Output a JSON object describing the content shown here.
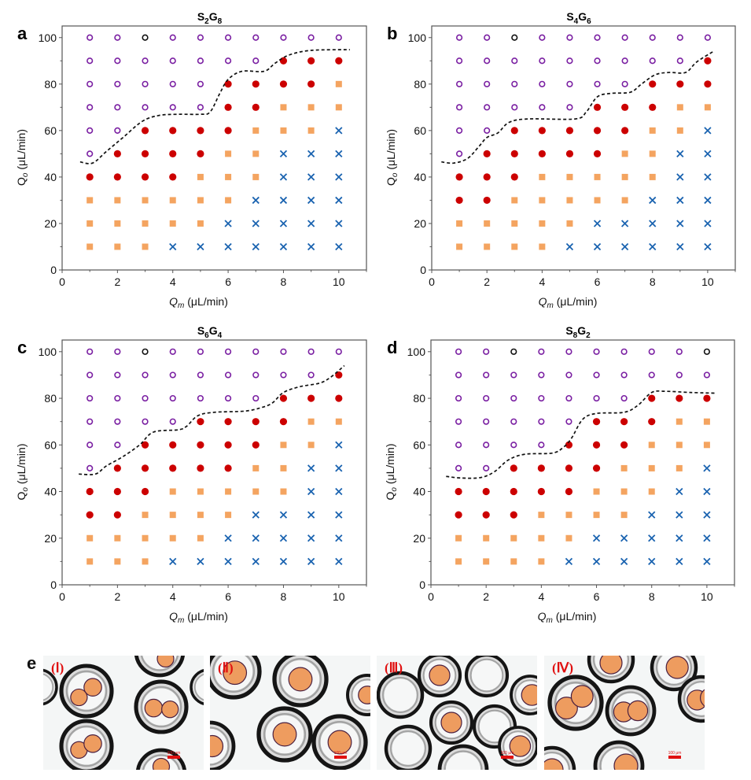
{
  "figure": {
    "panel_e_letter": "e",
    "photos": [
      {
        "label": "(Ⅰ)",
        "scalebar": "100 μm",
        "cores_per_shell": 2
      },
      {
        "label": "(Ⅱ)",
        "scalebar": "100 μm",
        "cores_per_shell": 1
      },
      {
        "label": "(Ⅲ)",
        "scalebar": "100 μm",
        "cores_per_shell": "0-1"
      },
      {
        "label": "(Ⅳ)",
        "scalebar": "100 μm",
        "cores_per_shell": "1-2"
      }
    ]
  },
  "colors": {
    "hollow_purple": "#7a1fa2",
    "hollow_black": "#111111",
    "solid_red": "#cc0000",
    "square_orange": "#f4a460",
    "cross_blue": "#1a63b0",
    "boundary": "#111111"
  },
  "legend_codes": {
    "o": "purple open circle",
    "k": "black open circle",
    "r": "red filled circle",
    "s": "orange filled square",
    "x": "blue cross"
  },
  "chart_data": [
    {
      "panel": "a",
      "type": "scatter",
      "title_main": "S",
      "title_sub1": "2",
      "title_mid": "G",
      "title_sub2": "8",
      "xlabel_var": "Q",
      "xlabel_sub": "m",
      "xlabel_unit": " (μL/min)",
      "ylabel_var": "Q",
      "ylabel_sub": "o",
      "ylabel_unit": " (μL/min)",
      "xlim": [
        0,
        11
      ],
      "ylim": [
        0,
        105
      ],
      "xticks": [
        "0",
        "2",
        "4",
        "6",
        "8",
        "10"
      ],
      "yticks": [
        "0",
        "20",
        "40",
        "60",
        "80",
        "100"
      ],
      "x": [
        1,
        2,
        3,
        4,
        5,
        6,
        7,
        8,
        9,
        10
      ],
      "y": [
        100,
        90,
        80,
        70,
        60,
        50,
        40,
        30,
        20,
        10
      ],
      "grid": [
        "ookooooooo",
        "ooooooorrr",
        "ooooorrrrs",
        "ooooorrsss",
        "oorrrrsssx",
        "orrrrssxxx",
        "rrrrsssxxx",
        "ssssssxxxx",
        "sssssxxxxx",
        "sssxxxxxxx"
      ],
      "boundary": [
        [
          0.65,
          46.5
        ],
        [
          1.1,
          46
        ],
        [
          1.6,
          51
        ],
        [
          2.2,
          57
        ],
        [
          2.9,
          64
        ],
        [
          3.5,
          66.5
        ],
        [
          4.2,
          67
        ],
        [
          5,
          67
        ],
        [
          5.35,
          68
        ],
        [
          5.7,
          76
        ],
        [
          6,
          82
        ],
        [
          6.5,
          85.5
        ],
        [
          7.3,
          85.5
        ],
        [
          7.7,
          89
        ],
        [
          8.2,
          92.5
        ],
        [
          9,
          94.5
        ],
        [
          10.4,
          94.8
        ]
      ]
    },
    {
      "panel": "b",
      "type": "scatter",
      "title_main": "S",
      "title_sub1": "4",
      "title_mid": "G",
      "title_sub2": "6",
      "xlabel_var": "Q",
      "xlabel_sub": "m",
      "xlabel_unit": " (μL/min)",
      "ylabel_var": "Q",
      "ylabel_sub": "o",
      "ylabel_unit": " (μL/min)",
      "xlim": [
        0,
        11
      ],
      "ylim": [
        0,
        105
      ],
      "xticks": [
        "0",
        "2",
        "4",
        "6",
        "8",
        "10"
      ],
      "yticks": [
        "0",
        "20",
        "40",
        "60",
        "80",
        "100"
      ],
      "x": [
        1,
        2,
        3,
        4,
        5,
        6,
        7,
        8,
        9,
        10
      ],
      "y": [
        100,
        90,
        80,
        70,
        60,
        50,
        40,
        30,
        20,
        10
      ],
      "grid": [
        "ookooooooo",
        "ooooooooor",
        "ooooooorrr",
        "ooooorrrss",
        "oorrrrrssx",
        "orrrrrssxx",
        "rrrsssssxx",
        "rrsssssxxx",
        "sssssxxxxx",
        "ssssxxxxxx"
      ],
      "boundary": [
        [
          0.35,
          46.5
        ],
        [
          0.8,
          46
        ],
        [
          1.3,
          48
        ],
        [
          1.7,
          53
        ],
        [
          2,
          57
        ],
        [
          2.4,
          59
        ],
        [
          2.8,
          63.5
        ],
        [
          3.5,
          65
        ],
        [
          5.2,
          65
        ],
        [
          5.6,
          68
        ],
        [
          6,
          74.5
        ],
        [
          6.5,
          76
        ],
        [
          7.2,
          76.5
        ],
        [
          7.6,
          80
        ],
        [
          8.1,
          84
        ],
        [
          8.6,
          85
        ],
        [
          9.2,
          85
        ],
        [
          9.6,
          89.5
        ],
        [
          10.2,
          94
        ]
      ]
    },
    {
      "panel": "c",
      "type": "scatter",
      "title_main": "S",
      "title_sub1": "6",
      "title_mid": "G",
      "title_sub2": "4",
      "xlabel_var": "Q",
      "xlabel_sub": "m",
      "xlabel_unit": " (μL/min)",
      "ylabel_var": "Q",
      "ylabel_sub": "o",
      "ylabel_unit": " (μL/min)",
      "xlim": [
        0,
        11
      ],
      "ylim": [
        0,
        105
      ],
      "xticks": [
        "0",
        "2",
        "4",
        "6",
        "8",
        "10"
      ],
      "yticks": [
        "0",
        "20",
        "40",
        "60",
        "80",
        "100"
      ],
      "x": [
        1,
        2,
        3,
        4,
        5,
        6,
        7,
        8,
        9,
        10
      ],
      "y": [
        100,
        90,
        80,
        70,
        60,
        50,
        40,
        30,
        20,
        10
      ],
      "grid": [
        "ookooooooo",
        "ooooooooor",
        "ooooooorrr",
        "oooorrrrss",
        "oorrrrrssx",
        "orrrrrssxx",
        "rrrsssssxx",
        "rrssssxxxx",
        "sssssxxxxx",
        "sssxxxxxxx"
      ],
      "boundary": [
        [
          0.6,
          47.5
        ],
        [
          1.2,
          47.5
        ],
        [
          1.6,
          51
        ],
        [
          2.2,
          55
        ],
        [
          2.8,
          60
        ],
        [
          3.3,
          65.5
        ],
        [
          4.2,
          66.5
        ],
        [
          4.5,
          68
        ],
        [
          4.9,
          72.5
        ],
        [
          5.5,
          74
        ],
        [
          6.6,
          74.5
        ],
        [
          7.2,
          76
        ],
        [
          7.6,
          78
        ],
        [
          8,
          82.5
        ],
        [
          8.6,
          85
        ],
        [
          9.3,
          86.5
        ],
        [
          9.7,
          89
        ],
        [
          10.2,
          94
        ]
      ]
    },
    {
      "panel": "d",
      "type": "scatter",
      "title_main": "S",
      "title_sub1": "8",
      "title_mid": "G",
      "title_sub2": "2",
      "xlabel_var": "Q",
      "xlabel_sub": "m",
      "xlabel_unit": " (μL/min)",
      "ylabel_var": "Q",
      "ylabel_sub": "o",
      "ylabel_unit": " (μL/min)",
      "xlim": [
        0,
        11
      ],
      "ylim": [
        0,
        105
      ],
      "xticks": [
        "0",
        "2",
        "4",
        "6",
        "8",
        "10"
      ],
      "yticks": [
        "0",
        "20",
        "40",
        "60",
        "80",
        "100"
      ],
      "x": [
        1,
        2,
        3,
        4,
        5,
        6,
        7,
        8,
        9,
        10
      ],
      "y": [
        100,
        90,
        80,
        70,
        60,
        50,
        40,
        30,
        20,
        10
      ],
      "grid": [
        "ookooooook",
        "oooooooooo",
        "ooooooorrr",
        "ooooorrrss",
        "oooorrrsss",
        "oorrrrsssx",
        "rrrrrsssxx",
        "rrrssssxxx",
        "sssssxxxxx",
        "ssssxxxxxx"
      ],
      "boundary": [
        [
          0.55,
          46.5
        ],
        [
          1.1,
          45.8
        ],
        [
          1.8,
          46
        ],
        [
          2.3,
          48.5
        ],
        [
          2.8,
          53.5
        ],
        [
          3.4,
          56
        ],
        [
          4.4,
          56.5
        ],
        [
          4.8,
          59
        ],
        [
          5.1,
          63
        ],
        [
          5.5,
          71
        ],
        [
          6,
          73.5
        ],
        [
          7,
          74
        ],
        [
          7.5,
          77
        ],
        [
          8,
          82.5
        ],
        [
          8.5,
          83
        ],
        [
          9.4,
          82.5
        ],
        [
          10.3,
          82.2
        ]
      ]
    }
  ]
}
